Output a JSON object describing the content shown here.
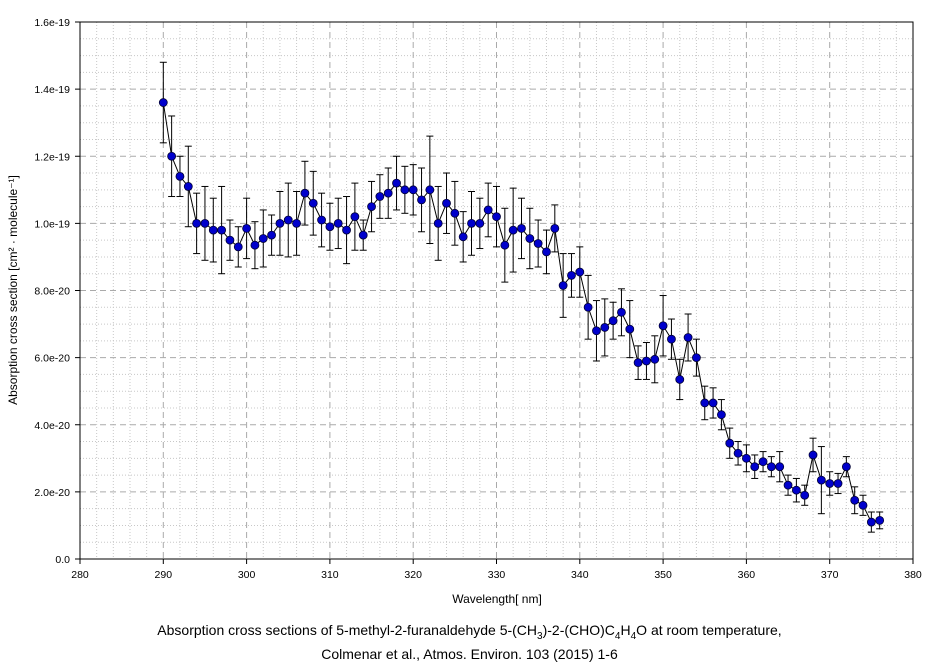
{
  "chart_data": {
    "type": "scatter",
    "xlabel": "Wavelength[ nm]",
    "ylabel": "Absorption cross section [cm² · molecule⁻¹]",
    "xlim": [
      280,
      380
    ],
    "ylim": [
      0,
      1.6e-19
    ],
    "x_ticks": [
      "280",
      "290",
      "300",
      "310",
      "320",
      "330",
      "340",
      "350",
      "360",
      "370",
      "380"
    ],
    "y_ticks": [
      "0.0",
      "2.0e-20",
      "4.0e-20",
      "6.0e-20",
      "8.0e-20",
      "1.0e-19",
      "1.2e-19",
      "1.4e-19",
      "1.6e-19"
    ],
    "grid": true,
    "legend": "none",
    "marker_color": "#0000cc",
    "line_color": "#000000",
    "series": [
      {
        "x": [
          290,
          291,
          292,
          293,
          294,
          295,
          296,
          297,
          298,
          299,
          300,
          301,
          302,
          303,
          304,
          305,
          306,
          307,
          308,
          309,
          310,
          311,
          312,
          313,
          314,
          315,
          316,
          317,
          318,
          319,
          320,
          321,
          322,
          323,
          324,
          325,
          326,
          327,
          328,
          329,
          330,
          331,
          332,
          333,
          334,
          335,
          336,
          337,
          338,
          339,
          340,
          341,
          342,
          343,
          344,
          345,
          346,
          347,
          348,
          349,
          350,
          351,
          352,
          353,
          354,
          355,
          356,
          357,
          358,
          359,
          360,
          361,
          362,
          363,
          364,
          365,
          366,
          367,
          368,
          369,
          370,
          371,
          372,
          373,
          374,
          375,
          376
        ],
        "y": [
          1.36e-19,
          1.2e-19,
          1.14e-19,
          1.11e-19,
          1e-19,
          1e-19,
          9.8e-20,
          9.8e-20,
          9.5e-20,
          9.3e-20,
          9.85e-20,
          9.35e-20,
          9.55e-20,
          9.65e-20,
          1e-19,
          1.01e-19,
          1e-19,
          1.09e-19,
          1.06e-19,
          1.01e-19,
          9.9e-20,
          1e-19,
          9.8e-20,
          1.02e-19,
          9.65e-20,
          1.05e-19,
          1.08e-19,
          1.09e-19,
          1.12e-19,
          1.1e-19,
          1.1e-19,
          1.07e-19,
          1.1e-19,
          1e-19,
          1.06e-19,
          1.03e-19,
          9.6e-20,
          1e-19,
          1e-19,
          1.04e-19,
          1.02e-19,
          9.35e-20,
          9.8e-20,
          9.85e-20,
          9.55e-20,
          9.4e-20,
          9.15e-20,
          9.85e-20,
          8.15e-20,
          8.45e-20,
          8.55e-20,
          7.5e-20,
          6.8e-20,
          6.9e-20,
          7.1e-20,
          7.35e-20,
          6.85e-20,
          5.85e-20,
          5.9e-20,
          5.95e-20,
          6.95e-20,
          6.55e-20,
          5.35e-20,
          6.6e-20,
          6e-20,
          4.65e-20,
          4.65e-20,
          4.3e-20,
          3.45e-20,
          3.15e-20,
          3e-20,
          2.75e-20,
          2.9e-20,
          2.75e-20,
          2.75e-20,
          2.2e-20,
          2.05e-20,
          1.9e-20,
          3.1e-20,
          2.35e-20,
          2.25e-20,
          2.25e-20,
          2.75e-20,
          1.75e-20,
          1.6e-20,
          1.1e-20,
          1.15e-20
        ],
        "err": [
          1.2e-20,
          1.2e-20,
          6e-21,
          1.2e-20,
          9e-21,
          1.1e-20,
          9.5e-21,
          1.3e-20,
          6e-21,
          6e-21,
          9e-21,
          7e-21,
          8.5e-21,
          6e-21,
          9.5e-21,
          1.1e-20,
          9.5e-21,
          9.5e-21,
          9.5e-21,
          8e-21,
          7e-21,
          7.5e-21,
          1e-20,
          1e-20,
          4.5e-21,
          7.5e-21,
          6.5e-21,
          7.5e-21,
          8e-21,
          7e-21,
          7.5e-21,
          9.5e-21,
          1.6e-20,
          1.1e-20,
          9e-21,
          9.5e-21,
          7.5e-21,
          9.5e-21,
          7.5e-21,
          8e-21,
          9e-21,
          1.1e-20,
          1.25e-20,
          9e-21,
          9e-21,
          7e-21,
          6.5e-21,
          7e-21,
          9.5e-21,
          6.5e-21,
          7.5e-21,
          9.5e-21,
          9e-21,
          8.5e-21,
          5.5e-21,
          7e-21,
          8.5e-21,
          5e-21,
          5.5e-21,
          7e-21,
          9e-21,
          6e-21,
          6e-21,
          7e-21,
          5.5e-21,
          5e-21,
          4.5e-21,
          4.5e-21,
          4.5e-21,
          3.5e-21,
          4e-21,
          3.5e-21,
          3e-21,
          3e-21,
          4.5e-21,
          3e-21,
          3.5e-21,
          3e-21,
          5e-21,
          1e-20,
          3.5e-21,
          3e-21,
          3e-21,
          4e-21,
          3e-21,
          3e-21,
          2.5e-21
        ]
      }
    ]
  },
  "caption": {
    "line1_prefix": "Absorption cross sections of 5-methyl-2-furanaldehyde 5-(CH",
    "line1_sub1": "3",
    "line1_mid": ")-2-(CHO)C",
    "line1_sub2": "4",
    "line1_mid2": "H",
    "line1_sub3": "4",
    "line1_suffix": "O at room temperature,",
    "line2": "Colmenar et al., Atmos. Environ. 103 (2015) 1-6"
  }
}
